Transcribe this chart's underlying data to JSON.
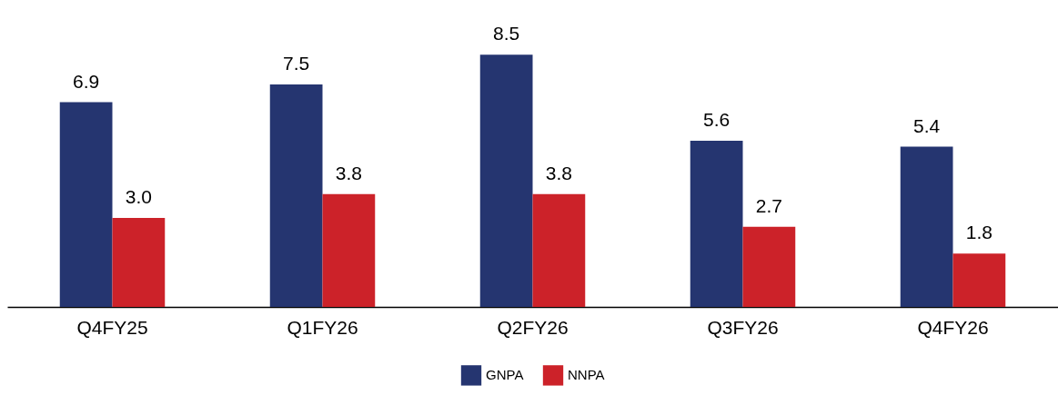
{
  "chart_data": {
    "type": "bar",
    "categories": [
      "Q4FY25",
      "Q1FY26",
      "Q2FY26",
      "Q3FY26",
      "Q4FY26"
    ],
    "series": [
      {
        "name": "GNPA",
        "color": "#253570",
        "values": [
          6.9,
          7.5,
          8.5,
          5.6,
          5.4
        ],
        "value_labels": [
          "6.9",
          "7.5",
          "8.5",
          "5.6",
          "5.4"
        ]
      },
      {
        "name": "NNPA",
        "color": "#cc2229",
        "values": [
          3.0,
          3.8,
          3.8,
          2.7,
          1.8
        ],
        "value_labels": [
          "3.0",
          "3.8",
          "3.8",
          "2.7",
          "1.8"
        ]
      }
    ],
    "legend": "bottom"
  }
}
